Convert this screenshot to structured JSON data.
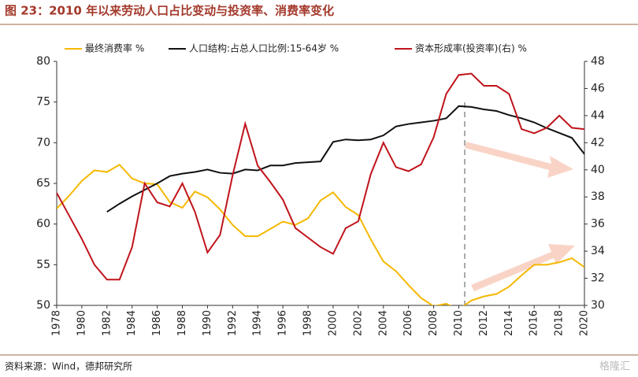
{
  "chart_data": {
    "type": "line",
    "title": "图 23：2010 年以来劳动人口占比变动与投资率、消费率变化",
    "source": "资料来源：Wind，德邦研究所",
    "watermark": "格隆汇",
    "x": [
      1978,
      1979,
      1980,
      1981,
      1982,
      1983,
      1984,
      1985,
      1986,
      1987,
      1988,
      1989,
      1990,
      1991,
      1992,
      1993,
      1994,
      1995,
      1996,
      1997,
      1998,
      1999,
      2000,
      2001,
      2002,
      2003,
      2004,
      2005,
      2006,
      2007,
      2008,
      2009,
      2010,
      2011,
      2012,
      2013,
      2014,
      2015,
      2016,
      2017,
      2018,
      2019,
      2020
    ],
    "xlim": [
      1978,
      2020
    ],
    "xticks": [
      1978,
      1980,
      1982,
      1984,
      1986,
      1988,
      1990,
      1992,
      1994,
      1996,
      1998,
      2000,
      2002,
      2004,
      2006,
      2008,
      2010,
      2012,
      2014,
      2016,
      2018,
      2020
    ],
    "ylim": [
      50,
      80
    ],
    "yticks": [
      50,
      55,
      60,
      65,
      70,
      75,
      80
    ],
    "y2lim": [
      30,
      48
    ],
    "y2ticks": [
      30,
      32,
      34,
      36,
      38,
      40,
      42,
      44,
      46,
      48
    ],
    "series": [
      {
        "name": "最终消费率 %",
        "color": "#f5b800",
        "values": [
          61.9,
          63.5,
          65.3,
          66.6,
          66.4,
          67.3,
          65.6,
          65.0,
          64.9,
          62.7,
          62.0,
          64.0,
          63.3,
          61.8,
          59.9,
          58.5,
          58.5,
          59.4,
          60.3,
          59.9,
          60.7,
          62.9,
          63.9,
          62.1,
          61.1,
          58.1,
          55.4,
          54.2,
          52.5,
          50.9,
          49.9,
          50.2,
          49.5,
          50.6,
          51.1,
          51.4,
          52.3,
          53.7,
          55.0,
          55.0,
          55.3,
          55.8,
          54.7
        ]
      },
      {
        "name": "人口结构:占总人口比例:15-64岁 %",
        "color": "#111111",
        "values": [
          null,
          null,
          null,
          null,
          61.5,
          62.5,
          63.4,
          64.2,
          65.0,
          65.9,
          66.2,
          66.4,
          66.7,
          66.3,
          66.2,
          66.7,
          66.6,
          67.2,
          67.2,
          67.5,
          67.6,
          67.7,
          70.1,
          70.4,
          70.3,
          70.4,
          70.9,
          72.0,
          72.3,
          72.5,
          72.7,
          73.0,
          74.5,
          74.4,
          74.1,
          73.9,
          73.4,
          73.0,
          72.5,
          71.8,
          71.2,
          70.6,
          68.6
        ]
      },
      {
        "name": "资本形成率(投资率)(右) %",
        "color": "#c0141c",
        "axis": "y2",
        "values": [
          38.3,
          36.6,
          34.9,
          33.0,
          31.9,
          31.9,
          34.3,
          39.0,
          37.6,
          37.3,
          39.0,
          36.9,
          33.9,
          35.2,
          39.6,
          43.4,
          40.3,
          39.1,
          37.8,
          35.7,
          35.0,
          34.3,
          33.8,
          35.7,
          36.2,
          39.7,
          42.0,
          40.2,
          39.9,
          40.4,
          42.4,
          45.6,
          47.0,
          47.1,
          46.2,
          46.2,
          45.6,
          43.0,
          42.7,
          43.1,
          44.0,
          43.1,
          43.0
        ]
      }
    ]
  }
}
